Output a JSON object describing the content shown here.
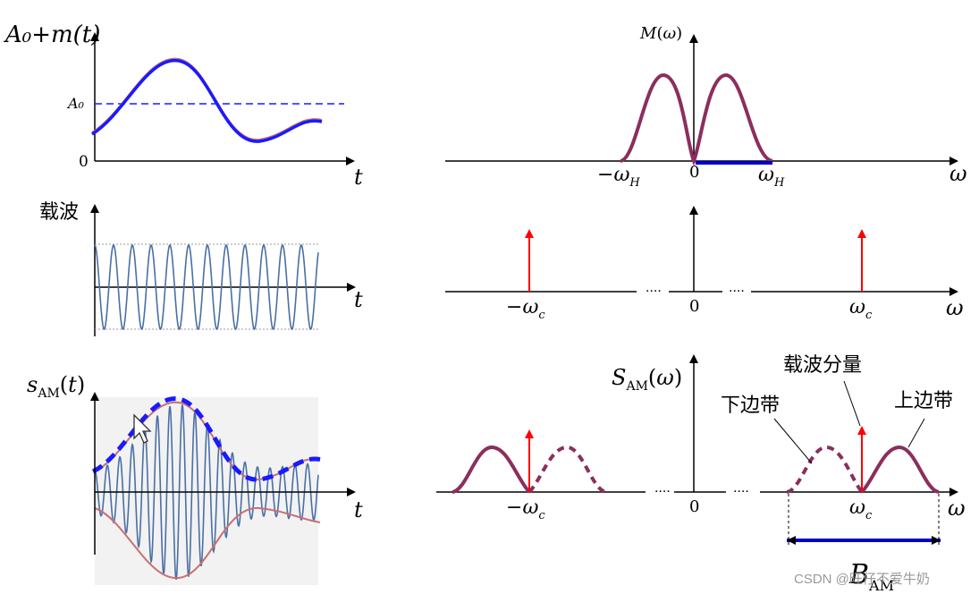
{
  "panels": {
    "message": {
      "ylabel": "A₀+m(t)",
      "ref_label": "A₀",
      "origin": "0",
      "xlabel": "t"
    },
    "carrier": {
      "ylabel": "载波",
      "xlabel": "t"
    },
    "am_signal": {
      "ylabel": "s_AM(t)",
      "xlabel": "t"
    },
    "message_spectrum": {
      "ylabel": "M(ω)",
      "neg_label": "−ω_H",
      "origin": "0",
      "pos_label": "ω_H",
      "xlabel": "ω"
    },
    "carrier_spectrum": {
      "neg_label": "−ω_c",
      "origin": "0",
      "pos_label": "ω_c",
      "xlabel": "ω"
    },
    "am_spectrum": {
      "ylabel": "S_AM(ω)",
      "neg_label": "−ω_c",
      "origin": "0",
      "pos_label": "ω_c",
      "xlabel": "ω",
      "carrier_component": "载波分量",
      "lower_sideband": "下边带",
      "upper_sideband": "上边带",
      "bandwidth": "B_AM"
    }
  },
  "watermark": "CSDN @旺仔不爱牛奶",
  "colors": {
    "axis": "#000000",
    "envelope": "#1a1aff",
    "spectrum": "#8b2e5e",
    "impulse": "#ff0000",
    "carrier": "#4a6fa5",
    "band": "#0000c8",
    "signal_light": "#c87070"
  }
}
